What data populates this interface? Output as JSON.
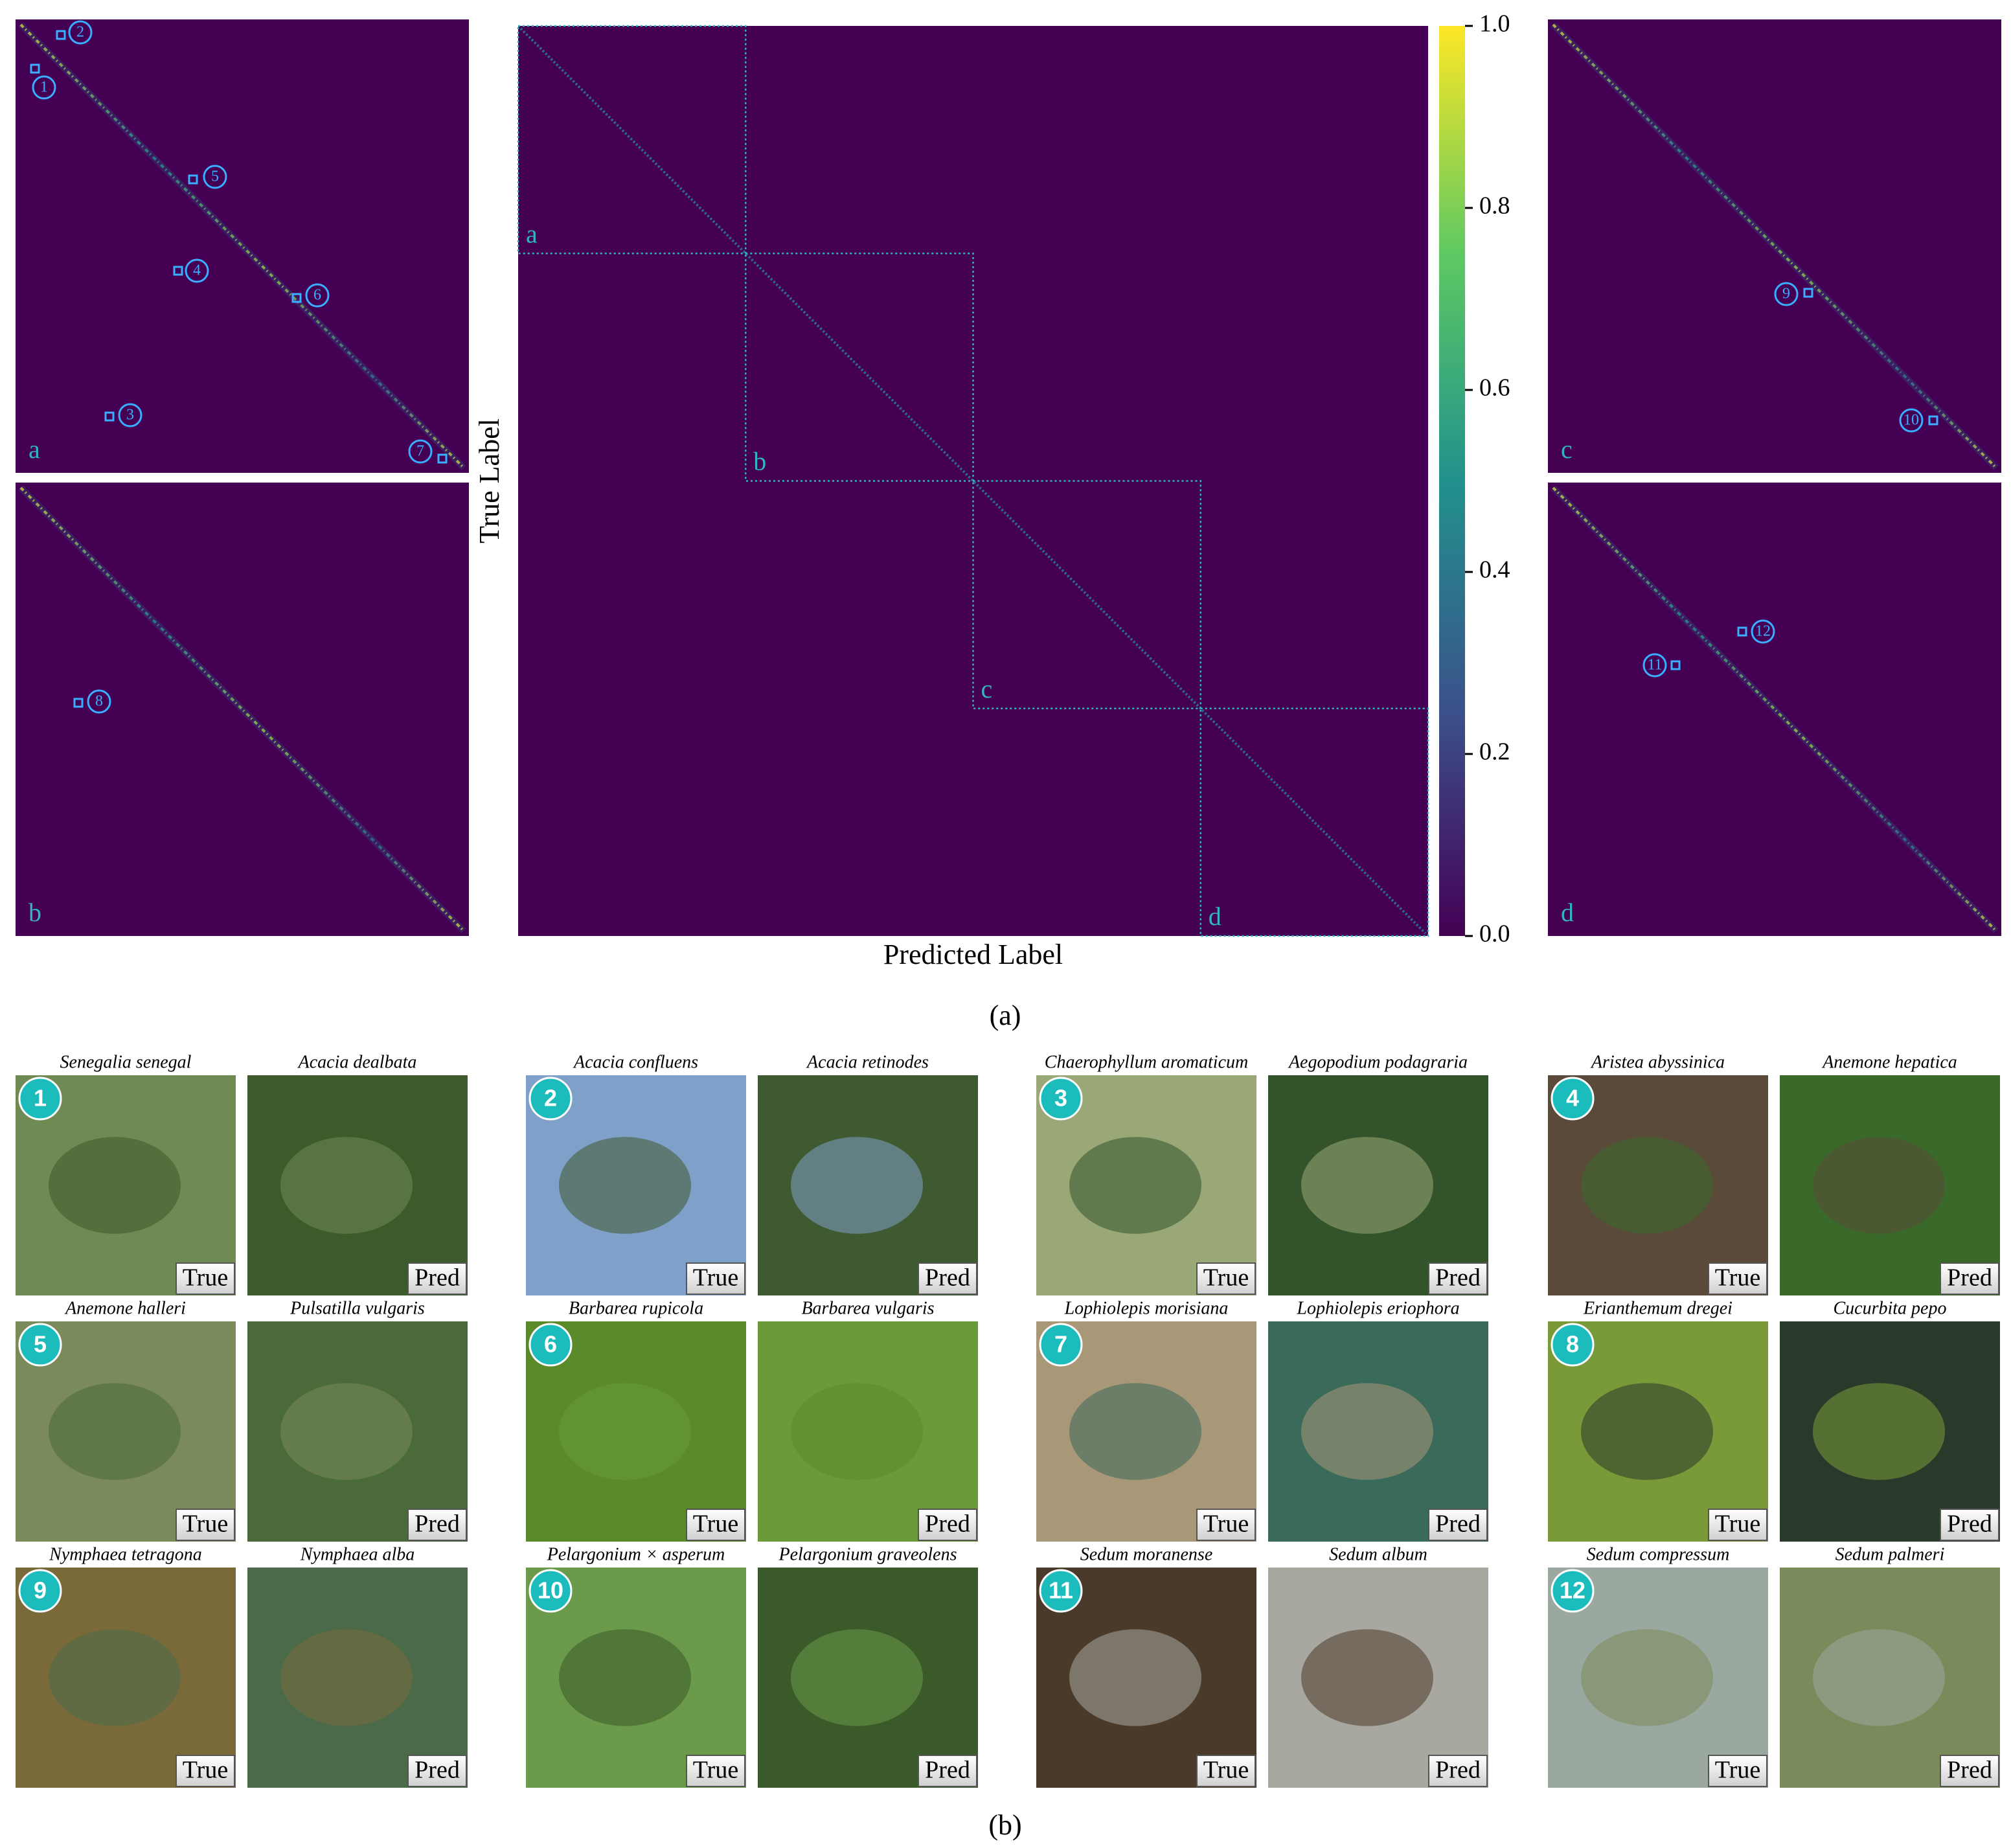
{
  "panel_a": {
    "caption": "(a)",
    "x_label": "Predicted Label",
    "y_label": "True Label",
    "colorbar": {
      "ylim": [
        0,
        1
      ],
      "yticks": [
        {
          "value": 0,
          "label": "0.0"
        },
        {
          "value": 0.2,
          "label": "0.2"
        },
        {
          "value": 0.4,
          "label": "0.4"
        },
        {
          "value": 0.6,
          "label": "0.6"
        },
        {
          "value": 0.8,
          "label": "0.8"
        },
        {
          "value": 1,
          "label": "1.0"
        }
      ]
    },
    "zoom_panels": [
      {
        "label": "a",
        "markers": [
          "1",
          "2",
          "3",
          "4",
          "5",
          "6",
          "7"
        ]
      },
      {
        "label": "b",
        "markers": [
          "8"
        ]
      },
      {
        "label": "c",
        "markers": [
          "9",
          "10"
        ]
      },
      {
        "label": "d",
        "markers": [
          "11",
          "12"
        ]
      }
    ]
  },
  "panel_b": {
    "caption": "(b)",
    "true_tag": "True",
    "pred_tag": "Pred",
    "examples": [
      {
        "number": "1",
        "true_name": "Senegalia senegal",
        "pred_name": "Acacia dealbata"
      },
      {
        "number": "2",
        "true_name": "Acacia confluens",
        "pred_name": "Acacia retinodes"
      },
      {
        "number": "3",
        "true_name": "Chaerophyllum aromaticum",
        "pred_name": "Aegopodium podagraria"
      },
      {
        "number": "4",
        "true_name": "Aristea abyssinica",
        "pred_name": "Anemone hepatica"
      },
      {
        "number": "5",
        "true_name": "Anemone halleri",
        "pred_name": "Pulsatilla vulgaris"
      },
      {
        "number": "6",
        "true_name": "Barbarea rupicola",
        "pred_name": "Barbarea vulgaris"
      },
      {
        "number": "7",
        "true_name": "Lophiolepis morisiana",
        "pred_name": "Lophiolepis eriophora"
      },
      {
        "number": "8",
        "true_name": "Erianthemum dregei",
        "pred_name": "Cucurbita pepo"
      },
      {
        "number": "9",
        "true_name": "Nymphaea tetragona",
        "pred_name": "Nymphaea alba"
      },
      {
        "number": "10",
        "true_name": "Pelargonium × asperum",
        "pred_name": "Pelargonium graveolens"
      },
      {
        "number": "11",
        "true_name": "Sedum moranense",
        "pred_name": "Sedum album"
      },
      {
        "number": "12",
        "true_name": "Sedum compressum",
        "pred_name": "Sedum palmeri"
      }
    ]
  }
}
